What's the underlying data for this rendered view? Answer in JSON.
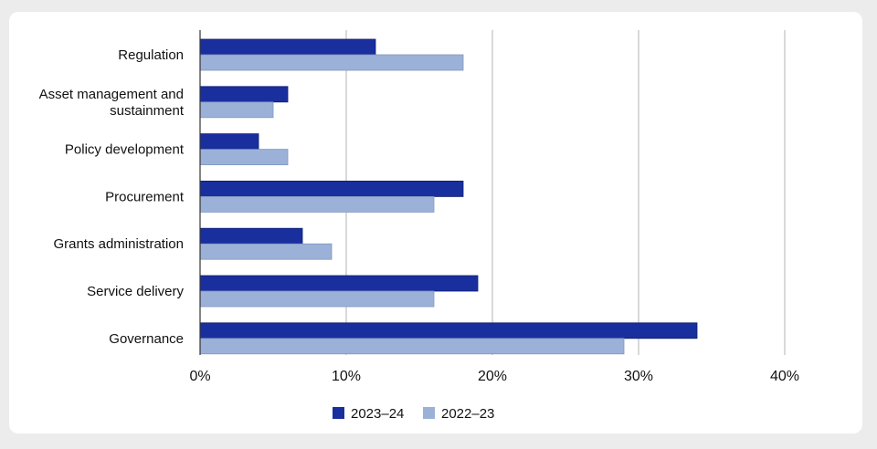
{
  "chart_data": {
    "type": "bar",
    "orientation": "horizontal",
    "title": "",
    "xlabel": "",
    "ylabel": "",
    "xlim": [
      0,
      40
    ],
    "x_ticks": [
      "0%",
      "10%",
      "20%",
      "30%",
      "40%"
    ],
    "grid": true,
    "legend_position": "bottom-center",
    "categories": [
      [
        "Regulation"
      ],
      [
        "Asset management and",
        "sustainment"
      ],
      [
        "Policy development"
      ],
      [
        "Procurement"
      ],
      [
        "Grants administration"
      ],
      [
        "Service delivery"
      ],
      [
        "Governance"
      ]
    ],
    "series": [
      {
        "name": "2023–24",
        "color": "#1a2f9e",
        "values": [
          12,
          6,
          4,
          18,
          7,
          19,
          34
        ]
      },
      {
        "name": "2022–23",
        "color": "#9bb1d8",
        "values": [
          18,
          5,
          6,
          16,
          9,
          16,
          29
        ]
      }
    ]
  }
}
